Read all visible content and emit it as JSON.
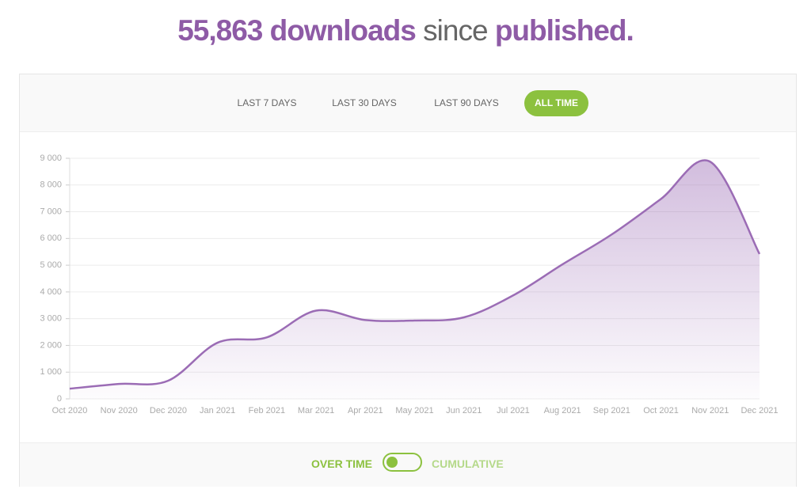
{
  "header": {
    "parts": [
      "55,863 downloads",
      "since",
      "published."
    ]
  },
  "tabs": [
    "LAST 7 DAYS",
    "LAST 30 DAYS",
    "LAST 90 DAYS",
    "ALL TIME"
  ],
  "toggle": {
    "left": "OVER TIME",
    "right": "CUMULATIVE"
  },
  "chart_data": {
    "type": "area",
    "categories": [
      "Oct 2020",
      "Nov 2020",
      "Dec 2020",
      "Jan 2021",
      "Feb 2021",
      "Mar 2021",
      "Apr 2021",
      "May 2021",
      "Jun 2021",
      "Jul 2021",
      "Aug 2021",
      "Sep 2021",
      "Oct 2021",
      "Nov 2021",
      "Dec 2021"
    ],
    "values": [
      380,
      560,
      680,
      2100,
      2300,
      3300,
      2950,
      2930,
      3050,
      3870,
      5030,
      6150,
      7480,
      8870,
      5420
    ],
    "color": "#9b6cb5",
    "ylim": [
      0,
      9000
    ],
    "yticks": [
      0,
      {
        "value": 1000,
        "label": "1 000"
      },
      {
        "value": 2000,
        "label": "2 000"
      },
      {
        "value": 3000,
        "label": "3 000"
      },
      {
        "value": 4000,
        "label": "4 000"
      },
      {
        "value": 5000,
        "label": "5 000"
      },
      {
        "value": 6000,
        "label": "6 000"
      },
      {
        "value": 7000,
        "label": "7 000"
      },
      {
        "value": 8000,
        "label": "8 000"
      },
      {
        "value": 9000,
        "label": "9 000"
      }
    ],
    "grid": true
  }
}
